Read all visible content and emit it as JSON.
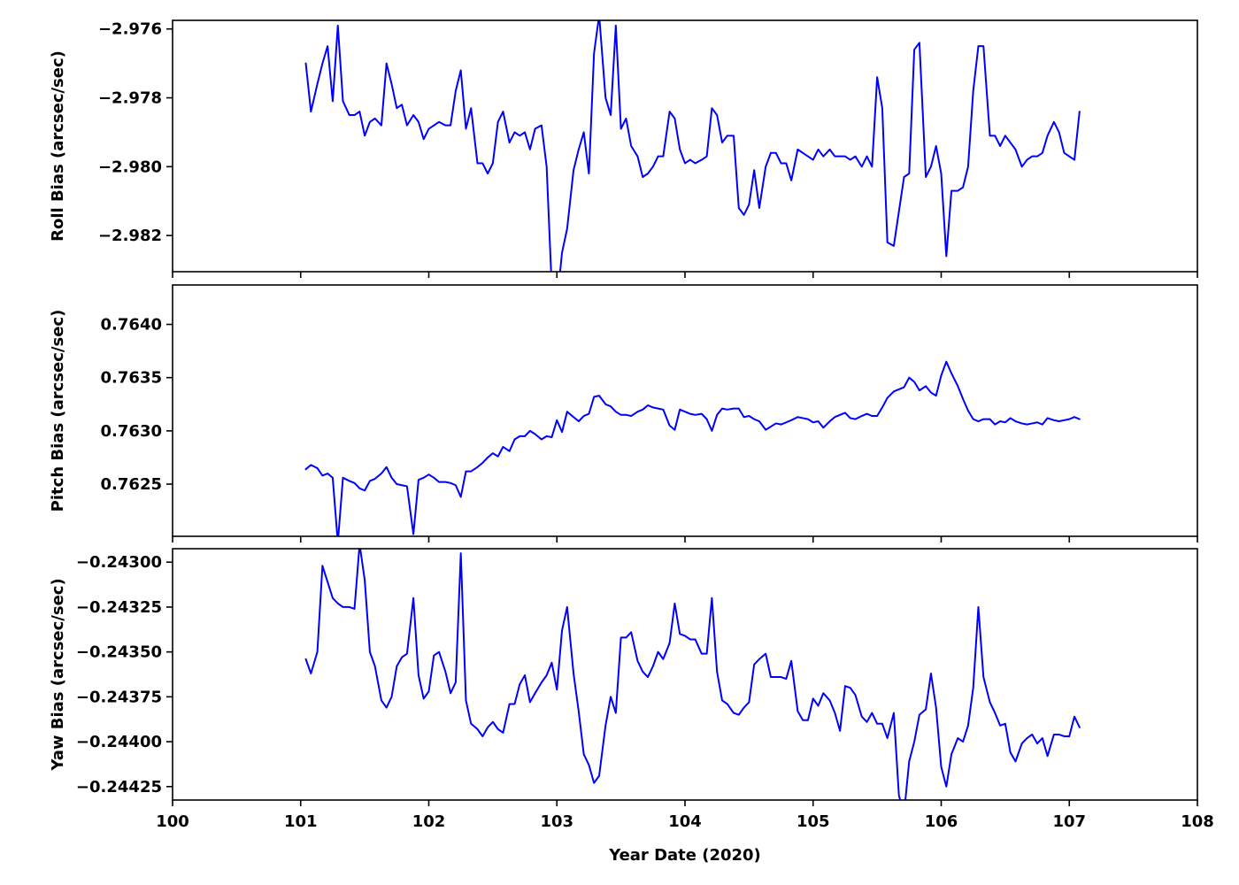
{
  "chart_data": {
    "type": "line",
    "line_color": "#0000ff",
    "xlabel": "Year Date (2020)",
    "xlim": [
      100,
      108
    ],
    "xticks": [
      100,
      101,
      102,
      103,
      104,
      105,
      106,
      107,
      108
    ],
    "x": [
      101.04,
      101.08,
      101.13,
      101.17,
      101.21,
      101.25,
      101.29,
      101.33,
      101.38,
      101.42,
      101.46,
      101.5,
      101.54,
      101.58,
      101.63,
      101.67,
      101.71,
      101.75,
      101.79,
      101.83,
      101.88,
      101.92,
      101.96,
      102.0,
      102.04,
      102.08,
      102.13,
      102.17,
      102.21,
      102.25,
      102.29,
      102.33,
      102.38,
      102.42,
      102.46,
      102.5,
      102.54,
      102.58,
      102.63,
      102.67,
      102.71,
      102.75,
      102.79,
      102.83,
      102.88,
      102.92,
      102.96,
      103.0,
      103.04,
      103.08,
      103.13,
      103.17,
      103.21,
      103.25,
      103.29,
      103.33,
      103.38,
      103.42,
      103.46,
      103.5,
      103.54,
      103.58,
      103.63,
      103.67,
      103.71,
      103.75,
      103.79,
      103.83,
      103.88,
      103.92,
      103.96,
      104.0,
      104.04,
      104.08,
      104.13,
      104.17,
      104.21,
      104.25,
      104.29,
      104.33,
      104.38,
      104.42,
      104.46,
      104.5,
      104.54,
      104.58,
      104.63,
      104.67,
      104.71,
      104.75,
      104.79,
      104.83,
      104.88,
      104.92,
      104.96,
      105.0,
      105.04,
      105.08,
      105.13,
      105.17,
      105.21,
      105.25,
      105.29,
      105.33,
      105.38,
      105.42,
      105.46,
      105.5,
      105.54,
      105.58,
      105.63,
      105.67,
      105.71,
      105.75,
      105.79,
      105.83,
      105.88,
      105.92,
      105.96,
      106.0,
      106.04,
      106.08,
      106.13,
      106.17,
      106.21,
      106.25,
      106.29,
      106.33,
      106.38,
      106.42,
      106.46,
      106.5,
      106.54,
      106.58,
      106.63,
      106.67,
      106.71,
      106.75,
      106.79,
      106.83,
      106.88,
      106.92,
      106.96,
      107.0,
      107.04,
      107.08
    ],
    "panels": [
      {
        "ylabel": "Roll Bias (arcsec/sec)",
        "ylim": [
          -2.98305,
          -2.97575
        ],
        "yticks": [
          -2.976,
          -2.978,
          -2.98,
          -2.982
        ],
        "ytick_labels": [
          "−2.976",
          "−2.978",
          "−2.980",
          "−2.982"
        ],
        "values": [
          -2.977,
          -2.9784,
          -2.9776,
          -2.977,
          -2.9765,
          -2.9781,
          -2.9759,
          -2.9781,
          -2.9785,
          -2.9785,
          -2.9784,
          -2.9791,
          -2.9787,
          -2.9786,
          -2.9788,
          -2.977,
          -2.9776,
          -2.9783,
          -2.9782,
          -2.9788,
          -2.9785,
          -2.9787,
          -2.9792,
          -2.9789,
          -2.9788,
          -2.9787,
          -2.9788,
          -2.9788,
          -2.9778,
          -2.9772,
          -2.9789,
          -2.9783,
          -2.9799,
          -2.9799,
          -2.9802,
          -2.9799,
          -2.9787,
          -2.9784,
          -2.9793,
          -2.979,
          -2.9791,
          -2.979,
          -2.9795,
          -2.9789,
          -2.9788,
          -2.98,
          -2.9835,
          -2.984,
          -2.9825,
          -2.9818,
          -2.9801,
          -2.9795,
          -2.979,
          -2.9802,
          -2.9767,
          -2.9756,
          -2.978,
          -2.9785,
          -2.9759,
          -2.9789,
          -2.9786,
          -2.9794,
          -2.9797,
          -2.9803,
          -2.9802,
          -2.98,
          -2.9797,
          -2.9797,
          -2.9784,
          -2.9786,
          -2.9795,
          -2.9799,
          -2.9798,
          -2.9799,
          -2.9798,
          -2.9797,
          -2.9783,
          -2.9785,
          -2.9793,
          -2.9791,
          -2.9791,
          -2.9812,
          -2.9814,
          -2.9811,
          -2.9801,
          -2.9812,
          -2.98,
          -2.9796,
          -2.9796,
          -2.9799,
          -2.9799,
          -2.9804,
          -2.9795,
          -2.9796,
          -2.9797,
          -2.9798,
          -2.9795,
          -2.9797,
          -2.9795,
          -2.9797,
          -2.9797,
          -2.9797,
          -2.9798,
          -2.9797,
          -2.98,
          -2.9797,
          -2.98,
          -2.9774,
          -2.9783,
          -2.9822,
          -2.9823,
          -2.9813,
          -2.9803,
          -2.9802,
          -2.9766,
          -2.9764,
          -2.9803,
          -2.98,
          -2.9794,
          -2.9802,
          -2.9826,
          -2.9807,
          -2.9807,
          -2.9806,
          -2.98,
          -2.9778,
          -2.9765,
          -2.9765,
          -2.9791,
          -2.9791,
          -2.9794,
          -2.9791,
          -2.9793,
          -2.9795,
          -2.98,
          -2.9798,
          -2.9797,
          -2.9797,
          -2.9796,
          -2.9791,
          -2.9787,
          -2.979,
          -2.9796,
          -2.9797,
          -2.9798,
          -2.9784
        ]
      },
      {
        "ylabel": "Pitch Bias (arcsec/sec)",
        "ylim": [
          0.76201,
          0.76437
        ],
        "yticks": [
          0.764,
          0.7635,
          0.763,
          0.7625
        ],
        "ytick_labels": [
          "0.7640",
          "0.7635",
          "0.7630",
          "0.7625"
        ],
        "values": [
          0.76264,
          0.76268,
          0.76265,
          0.76258,
          0.7626,
          0.76256,
          0.76195,
          0.76256,
          0.76253,
          0.76251,
          0.76246,
          0.76244,
          0.76253,
          0.76255,
          0.7626,
          0.76266,
          0.76256,
          0.7625,
          0.76249,
          0.76248,
          0.76203,
          0.76254,
          0.76256,
          0.76259,
          0.76256,
          0.76252,
          0.76252,
          0.76251,
          0.76249,
          0.76238,
          0.76262,
          0.76262,
          0.76266,
          0.7627,
          0.76275,
          0.76279,
          0.76276,
          0.76285,
          0.76281,
          0.76292,
          0.76295,
          0.76295,
          0.763,
          0.76297,
          0.76292,
          0.76295,
          0.76294,
          0.7631,
          0.76299,
          0.76318,
          0.76313,
          0.76309,
          0.76314,
          0.76316,
          0.76332,
          0.76333,
          0.76325,
          0.76323,
          0.76318,
          0.76315,
          0.76315,
          0.76314,
          0.76318,
          0.7632,
          0.76324,
          0.76322,
          0.76321,
          0.7632,
          0.76305,
          0.76301,
          0.7632,
          0.76318,
          0.76316,
          0.76315,
          0.76316,
          0.76311,
          0.763,
          0.76315,
          0.76321,
          0.7632,
          0.76321,
          0.76321,
          0.76313,
          0.76314,
          0.76311,
          0.76309,
          0.76301,
          0.76304,
          0.76307,
          0.76306,
          0.76308,
          0.7631,
          0.76313,
          0.76312,
          0.76311,
          0.76308,
          0.76309,
          0.76303,
          0.76309,
          0.76313,
          0.76315,
          0.76317,
          0.76312,
          0.76311,
          0.76314,
          0.76316,
          0.76314,
          0.76314,
          0.76322,
          0.76331,
          0.76337,
          0.76339,
          0.76341,
          0.7635,
          0.76346,
          0.76338,
          0.76342,
          0.76336,
          0.76333,
          0.76352,
          0.76365,
          0.76354,
          0.76342,
          0.7633,
          0.76319,
          0.76311,
          0.76309,
          0.76311,
          0.76311,
          0.76306,
          0.76309,
          0.76308,
          0.76312,
          0.76309,
          0.76307,
          0.76306,
          0.76307,
          0.76308,
          0.76306,
          0.76312,
          0.7631,
          0.76309,
          0.7631,
          0.76311,
          0.76313,
          0.76311
        ]
      },
      {
        "ylabel": "Yaw Bias (arcsec/sec)",
        "ylim": [
          -0.244325,
          -0.242925
        ],
        "yticks": [
          -0.243,
          -0.24325,
          -0.2435,
          -0.24375,
          -0.244,
          -0.24425
        ],
        "ytick_labels": [
          "−0.24300",
          "−0.24325",
          "−0.24350",
          "−0.24375",
          "−0.24400",
          "−0.24425"
        ],
        "values": [
          -0.24354,
          -0.24362,
          -0.2435,
          -0.24302,
          -0.24311,
          -0.2432,
          -0.24323,
          -0.24325,
          -0.24325,
          -0.24326,
          -0.2429,
          -0.2431,
          -0.2435,
          -0.24358,
          -0.24377,
          -0.24381,
          -0.24375,
          -0.24358,
          -0.24353,
          -0.24351,
          -0.2432,
          -0.24363,
          -0.24376,
          -0.24372,
          -0.24352,
          -0.2435,
          -0.24361,
          -0.24373,
          -0.24367,
          -0.24295,
          -0.24377,
          -0.2439,
          -0.24393,
          -0.24397,
          -0.24392,
          -0.24389,
          -0.24393,
          -0.24395,
          -0.24379,
          -0.24379,
          -0.24368,
          -0.24363,
          -0.24378,
          -0.24373,
          -0.24367,
          -0.24363,
          -0.24356,
          -0.24371,
          -0.24338,
          -0.24325,
          -0.24362,
          -0.24383,
          -0.24407,
          -0.24413,
          -0.24423,
          -0.24419,
          -0.24391,
          -0.24375,
          -0.24384,
          -0.24342,
          -0.24342,
          -0.24339,
          -0.24355,
          -0.24361,
          -0.24364,
          -0.24358,
          -0.2435,
          -0.24354,
          -0.24345,
          -0.24323,
          -0.2434,
          -0.24341,
          -0.24343,
          -0.24343,
          -0.24351,
          -0.24351,
          -0.2432,
          -0.24361,
          -0.24377,
          -0.24379,
          -0.24384,
          -0.24385,
          -0.24381,
          -0.24378,
          -0.24357,
          -0.24354,
          -0.24351,
          -0.24364,
          -0.24364,
          -0.24364,
          -0.24365,
          -0.24355,
          -0.24383,
          -0.24388,
          -0.24388,
          -0.24376,
          -0.2438,
          -0.24373,
          -0.24377,
          -0.24384,
          -0.24394,
          -0.24369,
          -0.2437,
          -0.24374,
          -0.24386,
          -0.24389,
          -0.24384,
          -0.2439,
          -0.2439,
          -0.24398,
          -0.24384,
          -0.2443,
          -0.2444,
          -0.24411,
          -0.244,
          -0.24385,
          -0.24382,
          -0.24362,
          -0.24381,
          -0.24414,
          -0.24425,
          -0.24407,
          -0.24398,
          -0.244,
          -0.24391,
          -0.2437,
          -0.24325,
          -0.24364,
          -0.24378,
          -0.24384,
          -0.24391,
          -0.2439,
          -0.24406,
          -0.24411,
          -0.24401,
          -0.24398,
          -0.24396,
          -0.24401,
          -0.24398,
          -0.24408,
          -0.24396,
          -0.24396,
          -0.24397,
          -0.24397,
          -0.24386,
          -0.24392
        ]
      }
    ]
  }
}
